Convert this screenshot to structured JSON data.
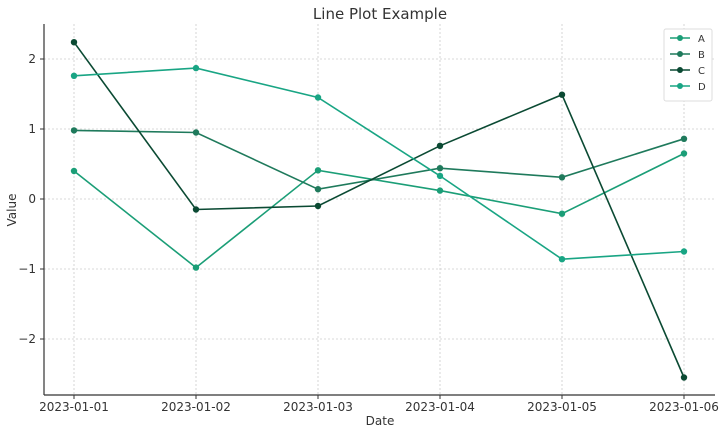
{
  "chart_data": {
    "type": "line",
    "title": "Line Plot Example",
    "xlabel": "Date",
    "ylabel": "Value",
    "x": [
      "2023-01-01",
      "2023-01-02",
      "2023-01-03",
      "2023-01-04",
      "2023-01-05",
      "2023-01-06"
    ],
    "ylim": [
      -2.8,
      2.5
    ],
    "yticks": [
      -2,
      -1,
      0,
      1,
      2
    ],
    "ytick_labels": [
      "−2",
      "−1",
      "0",
      "1",
      "2"
    ],
    "grid": true,
    "legend_position": "top-right",
    "series": [
      {
        "name": "A",
        "color": "#1b9e77",
        "values": [
          0.4,
          -0.98,
          0.41,
          0.12,
          -0.21,
          0.65
        ]
      },
      {
        "name": "B",
        "color": "#1f7a5c",
        "values": [
          0.98,
          0.95,
          0.14,
          0.44,
          0.31,
          0.86
        ]
      },
      {
        "name": "C",
        "color": "#0b4a33",
        "values": [
          2.24,
          -0.15,
          -0.1,
          0.76,
          1.49,
          -2.55
        ]
      },
      {
        "name": "D",
        "color": "#19a584",
        "values": [
          1.76,
          1.87,
          1.45,
          0.33,
          -0.86,
          -0.75
        ]
      }
    ]
  }
}
